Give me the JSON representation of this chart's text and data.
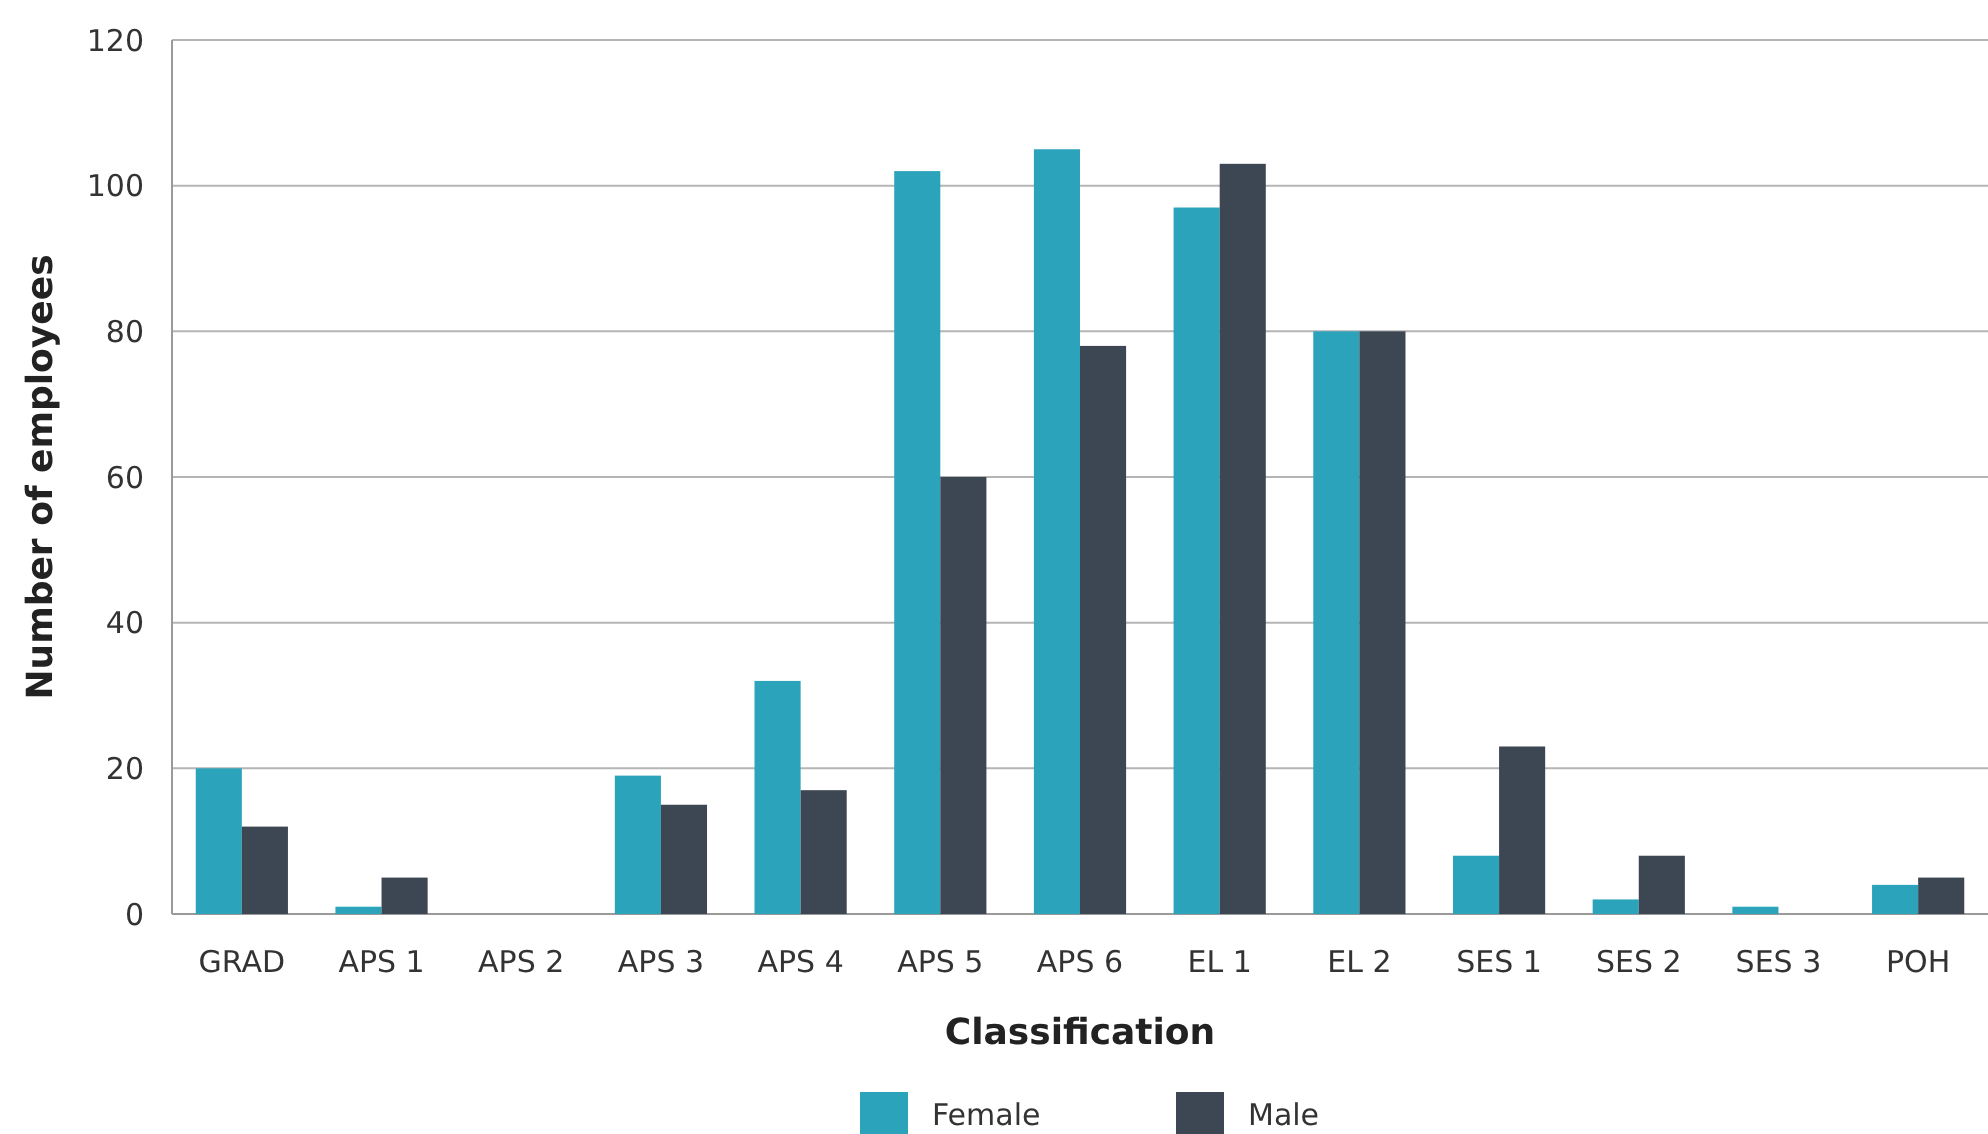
{
  "chart_data": {
    "type": "bar",
    "xlabel": "Classification",
    "ylabel": "Number of employees",
    "categories": [
      "GRAD",
      "APS 1",
      "APS 2",
      "APS 3",
      "APS 4",
      "APS 5",
      "APS 6",
      "EL 1",
      "EL 2",
      "SES 1",
      "SES 2",
      "SES 3",
      "POH"
    ],
    "series": [
      {
        "name": "Female",
        "color": "#2ba3ba",
        "values": [
          20,
          1,
          0,
          19,
          32,
          102,
          105,
          97,
          80,
          8,
          2,
          1,
          4
        ]
      },
      {
        "name": "Male",
        "color": "#3d4653",
        "values": [
          12,
          5,
          0,
          15,
          17,
          60,
          78,
          103,
          80,
          23,
          8,
          0,
          5
        ]
      }
    ],
    "ylim": [
      0,
      120
    ],
    "yticks": [
      0,
      20,
      40,
      60,
      80,
      100,
      120
    ],
    "grid": "y",
    "legend": "bottom"
  }
}
